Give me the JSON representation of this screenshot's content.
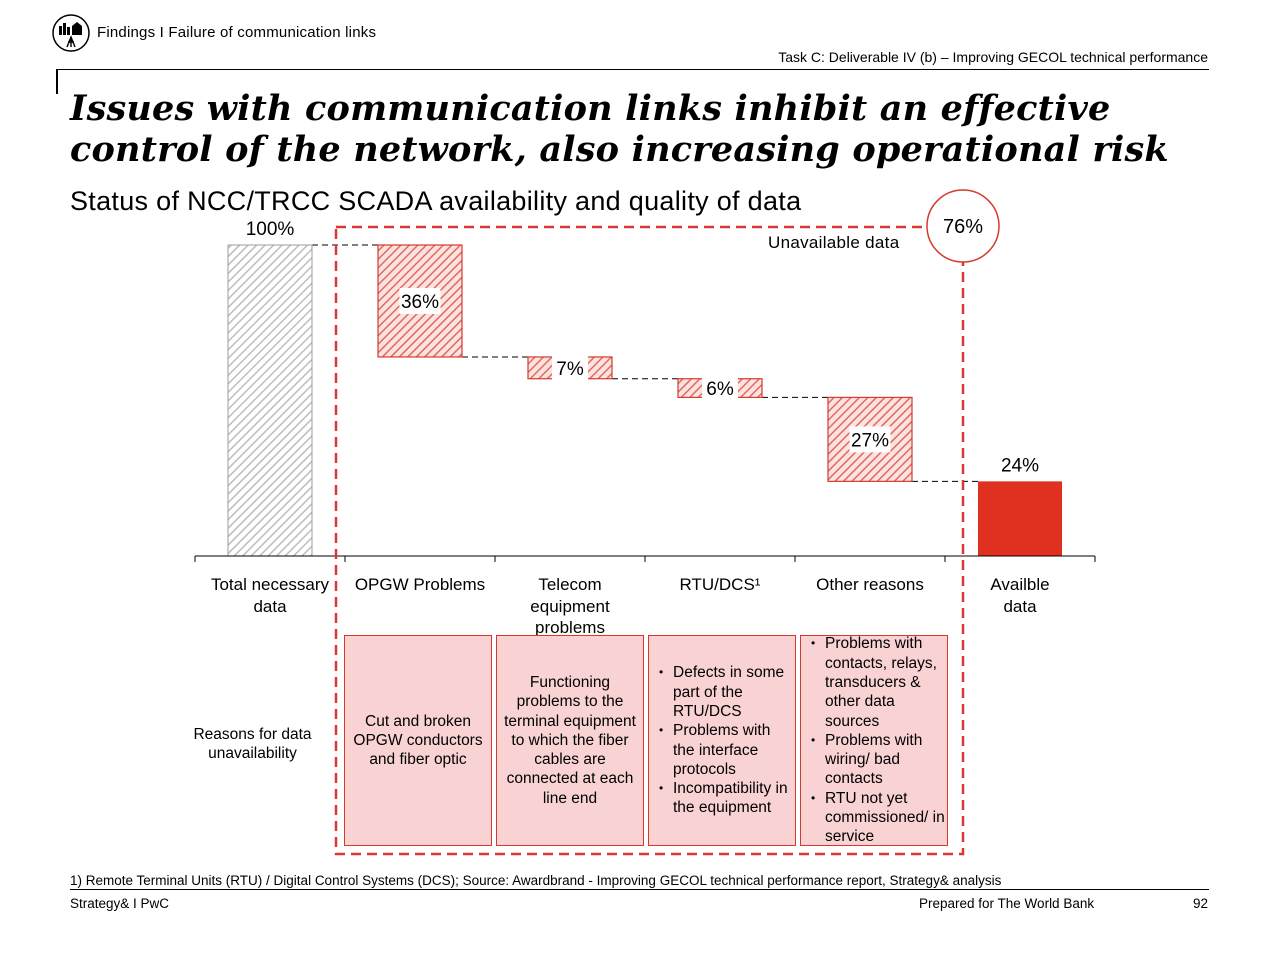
{
  "header": {
    "breadcrumb": "Findings I Failure of communication links",
    "task": "Task C: Deliverable IV (b) – Improving GECOL technical performance"
  },
  "title": "Issues with communication links inhibit an effective control of the network, also increasing operational risk",
  "subtitle": "Status of NCC/TRCC SCADA availability and quality of data",
  "colors": {
    "accent": "#d63a2f",
    "solid": "#e03020",
    "hatch_grey": "#bdbdbd",
    "box_fill": "#f9d3d3"
  },
  "chart_data": {
    "type": "waterfall",
    "ylim": [
      0,
      100
    ],
    "categories": [
      "Total necessary data",
      "OPGW Problems",
      "Telecom equipment problems",
      "RTU/DCS¹",
      "Other reasons",
      "Availble data"
    ],
    "values": [
      100,
      -36,
      -7,
      -6,
      -27,
      24
    ],
    "labels": [
      "100%",
      "36%",
      "7%",
      "6%",
      "27%",
      "24%"
    ],
    "kinds": [
      "total",
      "decrease",
      "decrease",
      "decrease",
      "decrease",
      "result"
    ],
    "callout": {
      "value": "76%",
      "label": "Unavailable data"
    }
  },
  "reasons": {
    "row_label": "Reasons for data unavailability",
    "opgw": "Cut and broken OPGW conductors and fiber optic",
    "telecom": "Functioning problems to the terminal equipment to which the fiber cables are connected at each line end",
    "rtu": [
      "Defects in some part of the RTU/DCS",
      "Problems with the interface protocols",
      "Incompatibility in the equipment"
    ],
    "other": [
      "Problems with contacts, relays, transducers & other data sources",
      "Problems with wiring/ bad contacts",
      "RTU not yet commissioned/ in service"
    ]
  },
  "footer": {
    "footnote": "1) Remote Terminal Units (RTU) / Digital Control Systems (DCS); Source: Awardbrand - Improving GECOL technical performance report, Strategy& analysis",
    "left": "Strategy& I PwC",
    "prepared": "Prepared for The World Bank",
    "page": "92"
  }
}
